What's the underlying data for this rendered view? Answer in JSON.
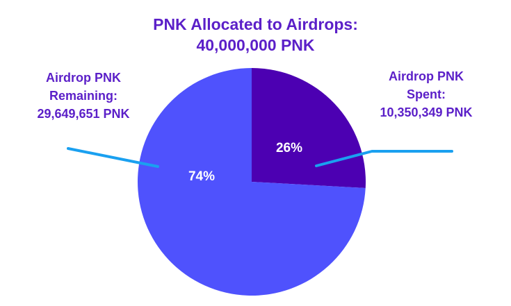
{
  "chart_data": {
    "type": "pie",
    "title": "PNK Allocated to Airdrops:",
    "subtitle": "40,000,000 PNK",
    "slices": [
      {
        "label_lines": [
          "Airdrop PNK",
          "Spent:",
          "10,350,349 PNK"
        ],
        "value": 10350349,
        "percent_label": "26%",
        "color": "#4c00b2"
      },
      {
        "label_lines": [
          "Airdrop PNK",
          "Remaining:",
          "29,649,651 PNK"
        ],
        "value": 29649651,
        "percent_label": "74%",
        "color": "#4f52fd"
      }
    ],
    "leader_line_color": "#1aa0f0",
    "label_color": "#5b1fc8"
  }
}
